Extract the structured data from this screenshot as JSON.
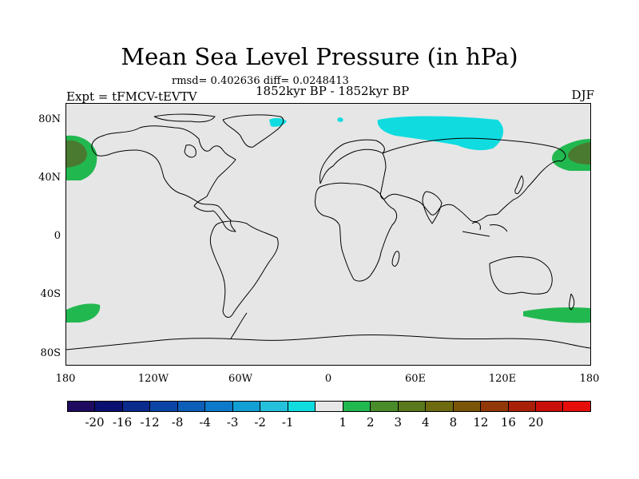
{
  "title": "Mean Sea Level Pressure (in hPa)",
  "stats": "rmsd= 0.402636 diff= 0.0248413",
  "period": "1852kyr BP - 1852kyr BP",
  "expt": "Expt = tFMCV-tEVTV",
  "season": "DJF",
  "axes": {
    "lat_ticks": [
      "80N",
      "40N",
      "0",
      "40S",
      "80S"
    ],
    "lon_ticks": [
      "180",
      "120W",
      "60W",
      "0",
      "60E",
      "120E",
      "180"
    ]
  },
  "colorbar": {
    "colors": [
      "#1e0a5e",
      "#0b1070",
      "#0a2a8c",
      "#0a44a6",
      "#0c5eb8",
      "#0c7ac8",
      "#12a0d4",
      "#24c0dc",
      "#10dce0",
      "#e6e6e6",
      "#22b850",
      "#4a8c2a",
      "#5a781c",
      "#6e6a10",
      "#7a5508",
      "#923808",
      "#a82008",
      "#c80f0a",
      "#e60e0a"
    ],
    "labels": [
      "-20",
      "-16",
      "-12",
      "-8",
      "-4",
      "-3",
      "-2",
      "-1",
      "1",
      "2",
      "3",
      "4",
      "8",
      "12",
      "16",
      "20"
    ]
  },
  "colors": {
    "positive": "#22b850",
    "positive_core": "#4a7a30",
    "negative": "#10dce0",
    "background": "#e6e6e6"
  }
}
